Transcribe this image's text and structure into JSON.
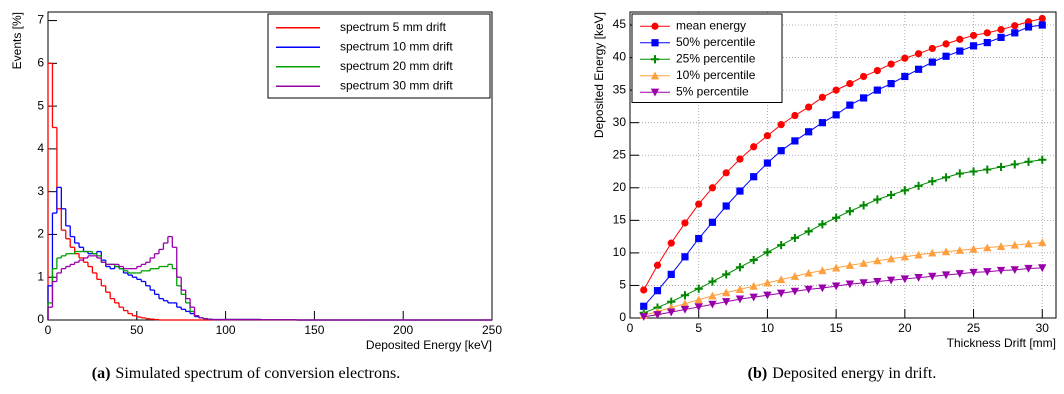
{
  "chart_data": [
    {
      "type": "histogram",
      "xlabel": "Deposited Energy [keV]",
      "ylabel": "Events [%]",
      "caption_label": "(a)",
      "caption": "Simulated spectrum of conversion electrons.",
      "bins": [
        0,
        2.5,
        5,
        7.5,
        10,
        12.5,
        15,
        17.5,
        20,
        22.5,
        25,
        27.5,
        30,
        32.5,
        35,
        37.5,
        40,
        42.5,
        45,
        47.5,
        50,
        52.5,
        55,
        57.5,
        60,
        62.5,
        65,
        67.5,
        70,
        72.5,
        75,
        77.5,
        80,
        82.5,
        85,
        87.5,
        90,
        92.5,
        95,
        97.5,
        100,
        110,
        120,
        130,
        140,
        150,
        160,
        170,
        180,
        190,
        200,
        210,
        220,
        230,
        240,
        250
      ],
      "xlim": [
        0,
        250
      ],
      "xticks": [
        0,
        50,
        100,
        150,
        200,
        250
      ],
      "ylim": [
        0,
        7.2
      ],
      "yticks": [
        0,
        1,
        2,
        3,
        4,
        5,
        6,
        7
      ],
      "grid": false,
      "legend": "upper right",
      "series": [
        {
          "name": "spectrum 5 mm drift",
          "color": "#ff0000",
          "values": [
            6.0,
            4.5,
            2.6,
            2.1,
            1.9,
            1.7,
            1.55,
            1.45,
            1.35,
            1.25,
            1.1,
            0.95,
            0.8,
            0.65,
            0.5,
            0.4,
            0.3,
            0.22,
            0.15,
            0.1,
            0.07,
            0.05,
            0.03,
            0.02,
            0.01,
            0,
            0,
            0,
            0,
            0,
            0,
            0,
            0,
            0,
            0,
            0,
            0,
            0,
            0,
            0,
            0,
            0,
            0,
            0,
            0,
            0,
            0,
            0,
            0,
            0,
            0,
            0,
            0,
            0,
            0
          ]
        },
        {
          "name": "spectrum 10 mm drift",
          "color": "#0000ff",
          "values": [
            0.8,
            2.5,
            3.1,
            2.6,
            2.2,
            1.95,
            1.8,
            1.7,
            1.6,
            1.55,
            1.55,
            1.6,
            1.4,
            1.25,
            1.2,
            1.25,
            1.2,
            1.1,
            1.05,
            1.0,
            0.95,
            0.9,
            0.8,
            0.7,
            0.6,
            0.5,
            0.45,
            0.4,
            0.4,
            0.3,
            0.25,
            0.2,
            0.15,
            0.08,
            0.05,
            0.03,
            0.02,
            0.01,
            0.01,
            0.01,
            0.01,
            0.01,
            0.005,
            0.005,
            0,
            0,
            0,
            0,
            0,
            0,
            0,
            0,
            0,
            0,
            0
          ]
        },
        {
          "name": "spectrum 20 mm drift",
          "color": "#00a000",
          "values": [
            0.4,
            1.2,
            1.45,
            1.5,
            1.55,
            1.55,
            1.6,
            1.6,
            1.6,
            1.6,
            1.55,
            1.5,
            1.35,
            1.3,
            1.3,
            1.25,
            1.2,
            1.15,
            1.1,
            1.1,
            1.1,
            1.15,
            1.15,
            1.2,
            1.2,
            1.25,
            1.25,
            1.3,
            1.2,
            0.8,
            0.6,
            0.4,
            0.2,
            0.1,
            0.05,
            0.03,
            0.02,
            0.01,
            0.01,
            0.01,
            0.01,
            0.01,
            0.005,
            0.005,
            0,
            0,
            0,
            0,
            0,
            0,
            0,
            0,
            0,
            0,
            0
          ]
        },
        {
          "name": "spectrum 30 mm drift",
          "color": "#9900aa",
          "values": [
            0.3,
            0.9,
            1.1,
            1.2,
            1.25,
            1.3,
            1.35,
            1.4,
            1.45,
            1.5,
            1.5,
            1.45,
            1.35,
            1.3,
            1.3,
            1.3,
            1.25,
            1.2,
            1.2,
            1.2,
            1.25,
            1.3,
            1.35,
            1.45,
            1.55,
            1.65,
            1.8,
            1.95,
            1.7,
            1.0,
            0.7,
            0.5,
            0.3,
            0.1,
            0.05,
            0.03,
            0.02,
            0.01,
            0.01,
            0.01,
            0.01,
            0.01,
            0.005,
            0.005,
            0,
            0,
            0,
            0,
            0,
            0,
            0,
            0,
            0,
            0,
            0
          ]
        }
      ]
    },
    {
      "type": "line",
      "xlabel": "Thickness Drift [mm]",
      "ylabel": "Deposited Energy [keV]",
      "caption_label": "(b)",
      "caption": "Deposited energy in drift.",
      "x": [
        1,
        2,
        3,
        4,
        5,
        6,
        7,
        8,
        9,
        10,
        11,
        12,
        13,
        14,
        15,
        16,
        17,
        18,
        19,
        20,
        21,
        22,
        23,
        24,
        25,
        26,
        27,
        28,
        29,
        30
      ],
      "xlim": [
        0,
        31
      ],
      "xticks": [
        0,
        5,
        10,
        15,
        20,
        25,
        30
      ],
      "ylim": [
        0,
        47
      ],
      "yticks": [
        0,
        5,
        10,
        15,
        20,
        25,
        30,
        35,
        40,
        45
      ],
      "grid": true,
      "legend": "upper left",
      "series": [
        {
          "name": "mean energy",
          "color": "#ff0000",
          "marker": "circle",
          "values": [
            4.3,
            8.1,
            11.5,
            14.6,
            17.5,
            20.0,
            22.3,
            24.4,
            26.3,
            28.0,
            29.7,
            31.1,
            32.4,
            33.9,
            35.0,
            36.0,
            37.1,
            38.0,
            39.0,
            39.9,
            40.6,
            41.4,
            42.1,
            42.8,
            43.4,
            43.8,
            44.3,
            44.9,
            45.5,
            46.0
          ]
        },
        {
          "name": "50% percentile",
          "color": "#0000ff",
          "marker": "square",
          "values": [
            1.8,
            4.2,
            6.7,
            9.4,
            12.2,
            14.7,
            17.2,
            19.5,
            21.7,
            23.8,
            25.7,
            27.2,
            28.6,
            30.0,
            31.2,
            32.7,
            33.8,
            35.0,
            36.0,
            37.1,
            38.2,
            39.3,
            40.2,
            41.0,
            41.8,
            42.3,
            43.1,
            43.8,
            44.7,
            45.0
          ]
        },
        {
          "name": "25% percentile",
          "color": "#008800",
          "marker": "plus",
          "values": [
            0.8,
            1.6,
            2.5,
            3.5,
            4.5,
            5.6,
            6.7,
            7.8,
            8.9,
            10.1,
            11.2,
            12.3,
            13.3,
            14.4,
            15.4,
            16.4,
            17.3,
            18.2,
            18.9,
            19.6,
            20.3,
            21.0,
            21.6,
            22.2,
            22.5,
            22.8,
            23.2,
            23.6,
            24.0,
            24.3
          ]
        },
        {
          "name": "10% percentile",
          "color": "#ffa040",
          "marker": "triangle-up",
          "values": [
            0.4,
            1.0,
            1.6,
            2.2,
            2.8,
            3.4,
            3.9,
            4.4,
            4.9,
            5.4,
            5.9,
            6.4,
            6.9,
            7.3,
            7.7,
            8.1,
            8.4,
            8.8,
            9.1,
            9.4,
            9.7,
            10.0,
            10.2,
            10.4,
            10.6,
            10.8,
            11.0,
            11.2,
            11.4,
            11.6
          ]
        },
        {
          "name": "5% percentile",
          "color": "#9900aa",
          "marker": "triangle-down",
          "values": [
            0.2,
            0.5,
            0.9,
            1.3,
            1.7,
            2.1,
            2.5,
            2.9,
            3.2,
            3.5,
            3.8,
            4.1,
            4.4,
            4.6,
            4.9,
            5.2,
            5.4,
            5.6,
            5.8,
            6.0,
            6.2,
            6.4,
            6.6,
            6.8,
            7.0,
            7.1,
            7.3,
            7.4,
            7.6,
            7.7
          ]
        }
      ]
    }
  ]
}
